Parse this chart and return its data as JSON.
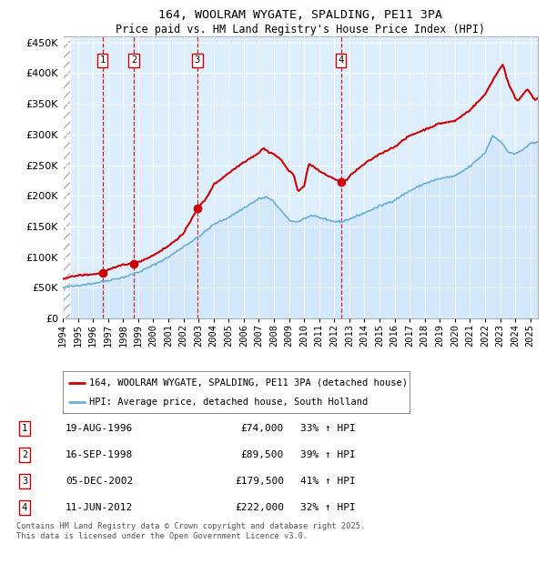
{
  "title1": "164, WOOLRAM WYGATE, SPALDING, PE11 3PA",
  "title2": "Price paid vs. HM Land Registry's House Price Index (HPI)",
  "legend_label1": "164, WOOLRAM WYGATE, SPALDING, PE11 3PA (detached house)",
  "legend_label2": "HPI: Average price, detached house, South Holland",
  "footer": "Contains HM Land Registry data © Crown copyright and database right 2025.\nThis data is licensed under the Open Government Licence v3.0.",
  "transactions": [
    {
      "num": 1,
      "date": "19-AUG-1996",
      "price": 74000,
      "year": 1996.63,
      "pct": "33%",
      "dir": "↑"
    },
    {
      "num": 2,
      "date": "16-SEP-1998",
      "price": 89500,
      "year": 1998.71,
      "pct": "39%",
      "dir": "↑"
    },
    {
      "num": 3,
      "date": "05-DEC-2002",
      "price": 179500,
      "year": 2002.92,
      "pct": "41%",
      "dir": "↑"
    },
    {
      "num": 4,
      "date": "11-JUN-2012",
      "price": 222000,
      "year": 2012.44,
      "pct": "32%",
      "dir": "↑"
    }
  ],
  "hpi_color": "#6baed6",
  "price_color": "#cc0000",
  "shading_color": "#ddeeff",
  "ylim": [
    0,
    460000
  ],
  "yticks": [
    0,
    50000,
    100000,
    150000,
    200000,
    250000,
    300000,
    350000,
    400000,
    450000
  ],
  "xlim_start": 1994.0,
  "xlim_end": 2025.5,
  "xtick_years": [
    1994,
    1995,
    1996,
    1997,
    1998,
    1999,
    2000,
    2001,
    2002,
    2003,
    2004,
    2005,
    2006,
    2007,
    2008,
    2009,
    2010,
    2011,
    2012,
    2013,
    2014,
    2015,
    2016,
    2017,
    2018,
    2019,
    2020,
    2021,
    2022,
    2023,
    2024,
    2025
  ]
}
